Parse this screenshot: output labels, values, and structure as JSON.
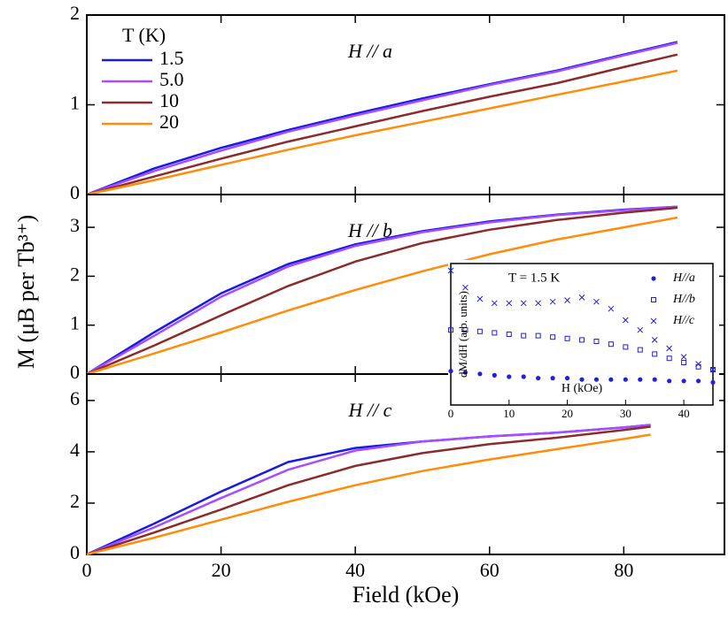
{
  "chart_data": [
    {
      "type": "line",
      "annotation": "H // a",
      "legend_title": "T (K)",
      "legend": "upper left",
      "x": [
        0,
        10,
        20,
        30,
        40,
        50,
        60,
        70,
        80,
        88
      ],
      "series": [
        {
          "name": "1.5",
          "color": "#1a1ae6",
          "values": [
            0,
            0.29,
            0.52,
            0.72,
            0.9,
            1.07,
            1.23,
            1.38,
            1.56,
            1.7
          ]
        },
        {
          "name": "5.0",
          "color": "#a64dff",
          "values": [
            0,
            0.26,
            0.49,
            0.7,
            0.88,
            1.05,
            1.22,
            1.37,
            1.55,
            1.69
          ]
        },
        {
          "name": "10",
          "color": "#8b2b2b",
          "values": [
            0,
            0.2,
            0.4,
            0.59,
            0.76,
            0.93,
            1.09,
            1.24,
            1.42,
            1.56
          ]
        },
        {
          "name": "20",
          "color": "#ff8c0a",
          "values": [
            0,
            0.16,
            0.33,
            0.5,
            0.66,
            0.81,
            0.96,
            1.11,
            1.26,
            1.38
          ]
        }
      ],
      "xlim": [
        0,
        95
      ],
      "xticks": [
        0,
        20,
        40,
        60,
        80
      ],
      "ylim": [
        0,
        2
      ],
      "yticks": [
        0,
        1,
        2
      ]
    },
    {
      "type": "line",
      "annotation": "H // b",
      "ylabel": "M (μB per Tb³⁺)",
      "x": [
        0,
        10,
        20,
        30,
        40,
        50,
        60,
        70,
        80,
        88
      ],
      "series": [
        {
          "color": "#1a1ae6",
          "values": [
            0,
            0.85,
            1.65,
            2.25,
            2.65,
            2.92,
            3.12,
            3.26,
            3.36,
            3.42
          ]
        },
        {
          "color": "#a64dff",
          "values": [
            0,
            0.78,
            1.58,
            2.2,
            2.62,
            2.9,
            3.1,
            3.25,
            3.35,
            3.42
          ]
        },
        {
          "color": "#8b2b2b",
          "values": [
            0,
            0.58,
            1.2,
            1.8,
            2.3,
            2.68,
            2.95,
            3.15,
            3.3,
            3.4
          ]
        },
        {
          "color": "#ff8c0a",
          "values": [
            0,
            0.42,
            0.85,
            1.3,
            1.72,
            2.1,
            2.45,
            2.75,
            3.0,
            3.2
          ]
        }
      ],
      "xlim": [
        0,
        95
      ],
      "xticks": [
        0,
        20,
        40,
        60,
        80
      ],
      "ylim": [
        0,
        3.67
      ],
      "yticks": [
        0,
        1,
        2,
        3
      ]
    },
    {
      "type": "line",
      "annotation": "H // c",
      "xlabel": "Field (kOe)",
      "x": [
        0,
        10,
        20,
        30,
        40,
        50,
        60,
        70,
        80,
        84
      ],
      "series": [
        {
          "color": "#1a1ae6",
          "values": [
            0,
            1.2,
            2.45,
            3.6,
            4.15,
            4.4,
            4.6,
            4.75,
            4.95,
            5.05
          ]
        },
        {
          "color": "#a64dff",
          "values": [
            0,
            1.05,
            2.2,
            3.3,
            4.05,
            4.4,
            4.6,
            4.75,
            4.95,
            5.05
          ]
        },
        {
          "color": "#8b2b2b",
          "values": [
            0,
            0.85,
            1.75,
            2.7,
            3.45,
            3.95,
            4.3,
            4.55,
            4.85,
            4.98
          ]
        },
        {
          "color": "#ff8c0a",
          "values": [
            0,
            0.65,
            1.35,
            2.05,
            2.7,
            3.25,
            3.7,
            4.1,
            4.5,
            4.67
          ]
        }
      ],
      "xlim": [
        0,
        95
      ],
      "xticks": [
        0,
        20,
        40,
        60,
        80
      ],
      "ylim": [
        0,
        7.03
      ],
      "yticks": [
        0,
        2,
        4,
        6
      ]
    },
    {
      "type": "scatter",
      "annotation": "T = 1.5 K",
      "xlabel": "H (kOe)",
      "ylabel": "dM/dH (arb. units)",
      "legend": "upper right",
      "x": [
        0,
        2.5,
        5,
        7.5,
        10,
        12.5,
        15,
        17.5,
        20,
        22.5,
        25,
        27.5,
        30,
        32.5,
        35,
        37.5,
        40,
        42.5,
        45
      ],
      "series": [
        {
          "name": "H//a",
          "color": "#2020e0",
          "marker": "circle",
          "values": [
            2.4,
            2.3,
            2.2,
            2.1,
            2.0,
            2.0,
            1.9,
            1.9,
            1.9,
            1.8,
            1.8,
            1.8,
            1.8,
            1.8,
            1.8,
            1.7,
            1.7,
            1.7,
            1.6
          ]
        },
        {
          "name": "H//b",
          "color": "#2020e0",
          "marker": "square",
          "values": [
            5.3,
            5.3,
            5.2,
            5.1,
            5.0,
            4.9,
            4.9,
            4.8,
            4.7,
            4.6,
            4.5,
            4.3,
            4.1,
            3.9,
            3.6,
            3.3,
            3.0,
            2.7,
            2.5
          ]
        },
        {
          "name": "H//c",
          "color": "#2020e0",
          "marker": "x",
          "values": [
            9.5,
            8.3,
            7.5,
            7.2,
            7.2,
            7.2,
            7.2,
            7.3,
            7.4,
            7.6,
            7.3,
            6.8,
            6.0,
            5.3,
            4.6,
            4.0,
            3.4,
            2.9,
            2.5
          ]
        }
      ],
      "xlim": [
        0,
        45
      ],
      "xticks": [
        0,
        10,
        20,
        30,
        40
      ],
      "ylim": [
        0,
        10
      ]
    }
  ]
}
